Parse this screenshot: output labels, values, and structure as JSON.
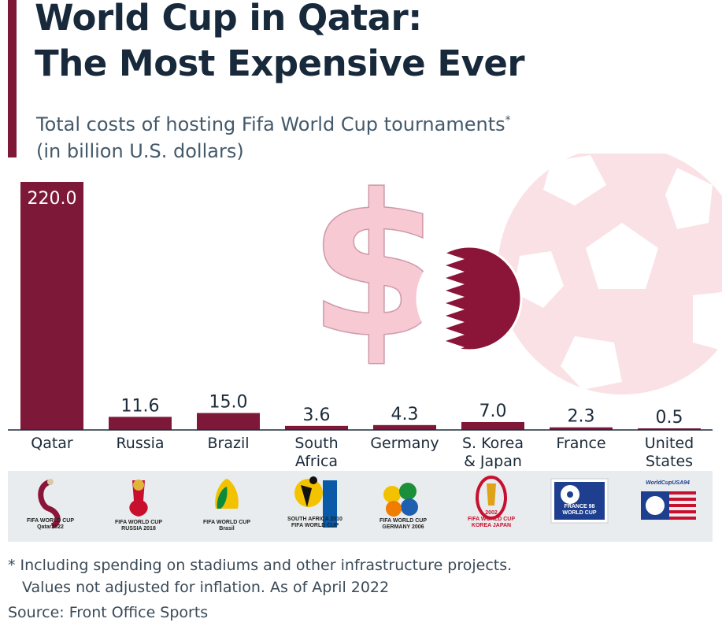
{
  "title_line1": "World Cup in Qatar:",
  "title_line2": "The Most Expensive Ever",
  "subtitle_line1": "Total costs of hosting Fifa World Cup tournaments",
  "subtitle_mark": "*",
  "subtitle_line2": "(in billion U.S. dollars)",
  "colors": {
    "bar": "#7d1838",
    "accent": "#7d1838",
    "decor_pink": "#f6c9d3",
    "decor_pink_light": "#fbe3e8",
    "flag_maroon": "#8a1538",
    "axis": "#1c2b3a",
    "logo_bg": "#e9ecee"
  },
  "chart_data": {
    "type": "bar",
    "categories": [
      "Qatar",
      "Russia",
      "Brazil",
      "South Africa",
      "Germany",
      "S. Korea & Japan",
      "France",
      "United States"
    ],
    "category_lines": [
      [
        "Qatar"
      ],
      [
        "Russia"
      ],
      [
        "Brazil"
      ],
      [
        "South",
        "Africa"
      ],
      [
        "Germany"
      ],
      [
        "S. Korea",
        "& Japan"
      ],
      [
        "France"
      ],
      [
        "United",
        "States"
      ]
    ],
    "values": [
      220.0,
      11.6,
      15.0,
      3.6,
      4.3,
      7.0,
      2.3,
      0.5
    ],
    "value_labels": [
      "220.0",
      "11.6",
      "15.0",
      "3.6",
      "4.3",
      "7.0",
      "2.3",
      "0.5"
    ],
    "ylim": [
      0,
      220
    ],
    "grid": false,
    "legend": "none"
  },
  "logos": [
    {
      "name": "qatar-2022-logo",
      "lines": [
        "FIFA WORLD CUP",
        "Qatar2022"
      ]
    },
    {
      "name": "russia-2018-logo",
      "lines": [
        "FIFA WORLD CUP",
        "RUSSIA 2018"
      ]
    },
    {
      "name": "brazil-2014-logo",
      "lines": [
        "FIFA WORLD CUP",
        "Brasil"
      ]
    },
    {
      "name": "south-africa-2010-logo",
      "lines": [
        "SOUTH AFRICA 2010",
        "FIFA WORLD CUP"
      ]
    },
    {
      "name": "germany-2006-logo",
      "lines": [
        "FIFA WORLD CUP",
        "GERMANY 2006"
      ]
    },
    {
      "name": "korea-japan-2002-logo",
      "lines": [
        "2002",
        "FIFA WORLD CUP",
        "KOREA JAPAN"
      ]
    },
    {
      "name": "france-1998-logo",
      "lines": [
        "FRANCE 98",
        "WORLD CUP"
      ]
    },
    {
      "name": "usa-1994-logo",
      "lines": [
        "WorldCupUSA94"
      ]
    }
  ],
  "footnote_line1": "* Including spending on stadiums and other infrastructure projects.",
  "footnote_line2": "Values not adjusted for inflation. As of April 2022",
  "source": "Source: Front Office Sports"
}
